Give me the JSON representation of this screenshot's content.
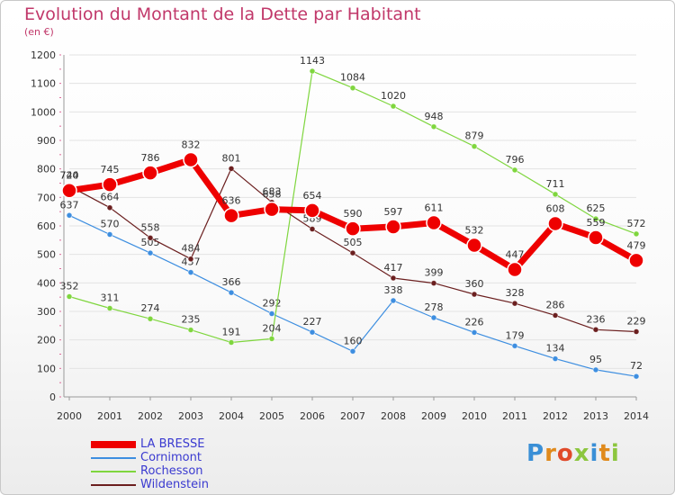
{
  "title": "Evolution du Montant de la Dette par Habitant",
  "subtitle": "(en €)",
  "brand": "Proxiti",
  "colors": {
    "title": "#c1386a",
    "legend_text": "#3a3ad0",
    "axis": "#999999",
    "grid": "#e3e3e3",
    "label": "#333333"
  },
  "chart_data": {
    "type": "line",
    "title": "Evolution du Montant de la Dette par Habitant",
    "subtitle": "(en €)",
    "xlabel": "",
    "ylabel": "",
    "x": [
      "2000",
      "2001",
      "2002",
      "2003",
      "2004",
      "2005",
      "2006",
      "2007",
      "2008",
      "2009",
      "2010",
      "2011",
      "2012",
      "2013",
      "2014"
    ],
    "ylim": [
      0,
      1200
    ],
    "yticks": [
      0,
      100,
      200,
      300,
      400,
      500,
      600,
      700,
      800,
      900,
      1000,
      1100,
      1200
    ],
    "grid": true,
    "legend_position": "bottom-left",
    "series": [
      {
        "name": "LA BRESSE",
        "color": "#ee0000",
        "width": 7,
        "marker": 8,
        "values": [
          724,
          745,
          786,
          832,
          636,
          658,
          654,
          590,
          597,
          611,
          532,
          447,
          608,
          559,
          479
        ]
      },
      {
        "name": "Cornimont",
        "color": "#3d8ee0",
        "width": 1.2,
        "marker": 3,
        "values": [
          637,
          570,
          505,
          437,
          366,
          292,
          227,
          160,
          338,
          278,
          226,
          179,
          134,
          95,
          72
        ]
      },
      {
        "name": "Rochesson",
        "color": "#7fd63e",
        "width": 1.2,
        "marker": 3,
        "values": [
          352,
          311,
          274,
          235,
          191,
          204,
          1143,
          1084,
          1020,
          948,
          879,
          796,
          711,
          625,
          572
        ]
      },
      {
        "name": "Wildenstein",
        "color": "#6b1f1f",
        "width": 1.2,
        "marker": 3,
        "values": [
          740,
          664,
          558,
          484,
          801,
          683,
          589,
          505,
          417,
          399,
          360,
          328,
          286,
          236,
          229
        ]
      }
    ]
  }
}
